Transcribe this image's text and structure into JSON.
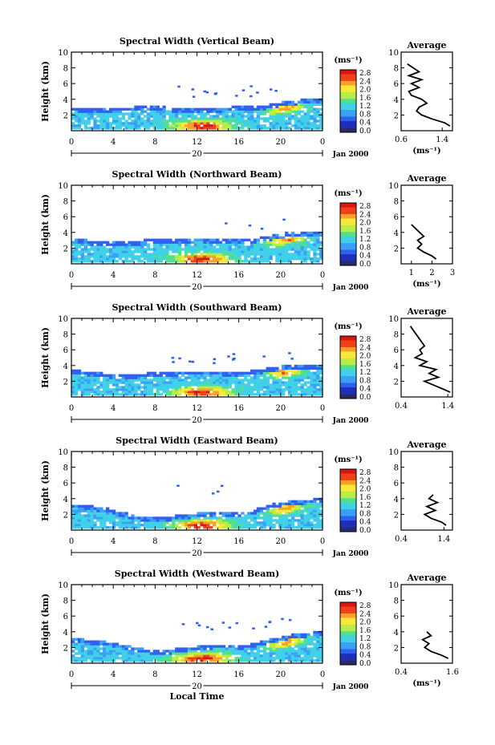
{
  "figure": {
    "xlabel": "Local Time",
    "avg_title": "Average",
    "colorbar_unit": "(ms⁻¹)",
    "date_label": "Jan 2000",
    "colormap": [
      "#2a2a6a",
      "#1e2fb8",
      "#2f60f0",
      "#3aa0f5",
      "#40d0e8",
      "#50e090",
      "#b8ec48",
      "#f8e838",
      "#f8a028",
      "#f04018",
      "#d81810"
    ]
  },
  "chart_data": [
    {
      "type": "heatmap",
      "title": "Spectral Width (Vertical Beam)",
      "xlabel": "",
      "ylabel": "Height (km)",
      "xlim": [
        0,
        24
      ],
      "ylim": [
        0,
        10
      ],
      "xticks": [
        "0",
        "4",
        "8",
        "12",
        "16",
        "20",
        "0"
      ],
      "yticks": [
        "2",
        "4",
        "6",
        "8",
        "10"
      ],
      "day_marker": "20",
      "colorbar": {
        "ticks": [
          "2.8",
          "2.4",
          "2.0",
          "1.6",
          "1.2",
          "0.8",
          "0.4",
          "0.0"
        ],
        "range": [
          0,
          2.8
        ]
      },
      "echo_top_km": [
        3.0,
        2.9,
        2.8,
        2.8,
        2.7,
        2.7,
        3.1,
        3.1,
        3.0,
        3.0,
        2.9,
        2.9,
        2.9,
        2.9,
        2.9,
        3.0,
        3.0,
        3.1,
        3.2,
        3.3,
        3.6,
        3.8,
        3.9,
        4.0,
        4.0
      ],
      "peak_time_h": 12.5,
      "average": {
        "xlim": [
          0.6,
          1.6
        ],
        "xticks": [
          "0.6",
          "1.4"
        ],
        "xlabel": "(ms⁻¹)",
        "height_km": [
          0.6,
          1,
          1.5,
          2,
          2.5,
          3,
          3.5,
          4,
          4.5,
          5,
          5.5,
          6,
          6.5,
          7,
          7.5,
          8.5
        ],
        "width": [
          1.55,
          1.45,
          1.2,
          1.0,
          0.9,
          0.95,
          1.1,
          1.0,
          0.8,
          0.75,
          0.95,
          0.8,
          1.0,
          0.75,
          0.95,
          0.72
        ]
      }
    },
    {
      "type": "heatmap",
      "title": "Spectral Width (Northward Beam)",
      "xlabel": "",
      "ylabel": "Height (km)",
      "xlim": [
        0,
        24
      ],
      "ylim": [
        0,
        10
      ],
      "xticks": [
        "0",
        "4",
        "8",
        "12",
        "16",
        "20",
        "0"
      ],
      "yticks": [
        "2",
        "4",
        "6",
        "8",
        "10"
      ],
      "day_marker": "20",
      "colorbar": {
        "ticks": [
          "2.8",
          "2.4",
          "2.0",
          "1.6",
          "1.2",
          "0.8",
          "0.4",
          "0.0"
        ],
        "range": [
          0,
          2.8
        ]
      },
      "echo_top_km": [
        3.2,
        3.1,
        2.9,
        2.8,
        2.7,
        2.7,
        2.9,
        3.0,
        3.0,
        3.0,
        3.1,
        3.2,
        3.3,
        3.2,
        3.1,
        3.0,
        3.0,
        3.1,
        3.3,
        3.5,
        3.8,
        4.0,
        4.0,
        4.0,
        4.0
      ],
      "peak_time_h": 12.5,
      "average": {
        "xlim": [
          0.5,
          3
        ],
        "xticks": [
          "1",
          "2",
          "3"
        ],
        "xlabel": "(ms⁻¹)",
        "height_km": [
          0.6,
          1,
          1.5,
          2,
          2.5,
          3,
          3.5,
          4,
          4.5,
          5
        ],
        "width": [
          2.2,
          2.0,
          1.6,
          1.3,
          1.5,
          1.3,
          1.6,
          1.4,
          1.2,
          1.0
        ]
      }
    },
    {
      "type": "heatmap",
      "title": "Spectral Width (Southward Beam)",
      "xlabel": "",
      "ylabel": "Height (km)",
      "xlim": [
        0,
        24
      ],
      "ylim": [
        0,
        10
      ],
      "xticks": [
        "0",
        "4",
        "8",
        "12",
        "16",
        "20",
        "0"
      ],
      "yticks": [
        "2",
        "4",
        "6",
        "8",
        "10"
      ],
      "day_marker": "20",
      "colorbar": {
        "ticks": [
          "2.8",
          "2.4",
          "2.0",
          "1.6",
          "1.2",
          "0.8",
          "0.4",
          "0.0"
        ],
        "range": [
          0,
          2.8
        ]
      },
      "echo_top_km": [
        3.4,
        3.3,
        3.2,
        3.0,
        2.9,
        2.8,
        2.9,
        3.0,
        3.0,
        3.1,
        3.2,
        3.3,
        3.3,
        3.3,
        3.3,
        3.2,
        3.2,
        3.3,
        3.5,
        3.7,
        3.9,
        4.0,
        4.1,
        4.1,
        4.1
      ],
      "peak_time_h": 12.5,
      "average": {
        "xlim": [
          0.4,
          1.5
        ],
        "xticks": [
          "0.4",
          "1.4"
        ],
        "xlabel": "",
        "height_km": [
          0.6,
          1,
          1.5,
          2,
          2.5,
          3,
          3.5,
          4,
          4.5,
          5,
          5.5,
          6,
          6.5,
          9
        ],
        "width": [
          1.45,
          1.3,
          1.1,
          0.9,
          1.2,
          1.0,
          1.15,
          0.8,
          0.95,
          0.7,
          0.85,
          0.8,
          0.9,
          0.6
        ]
      }
    },
    {
      "type": "heatmap",
      "title": "Spectral Width (Eastward Beam)",
      "xlabel": "",
      "ylabel": "Height (km)",
      "xlim": [
        0,
        24
      ],
      "ylim": [
        0,
        10
      ],
      "xticks": [
        "0",
        "4",
        "8",
        "12",
        "16",
        "20",
        "0"
      ],
      "yticks": [
        "2",
        "4",
        "6",
        "8",
        "10"
      ],
      "day_marker": "20",
      "colorbar": {
        "ticks": [
          "2.8",
          "2.4",
          "2.0",
          "1.6",
          "1.2",
          "0.8",
          "0.4",
          "0.0"
        ],
        "range": [
          0,
          2.8
        ]
      },
      "echo_top_km": [
        3.3,
        3.2,
        3.0,
        2.9,
        2.6,
        2.2,
        1.8,
        1.7,
        1.7,
        1.7,
        1.8,
        2.0,
        2.1,
        2.2,
        2.3,
        2.3,
        2.3,
        2.4,
        2.8,
        3.2,
        3.5,
        3.7,
        3.8,
        3.9,
        3.9
      ],
      "peak_time_h": 12.5,
      "average": {
        "xlim": [
          0.4,
          1.6
        ],
        "xticks": [
          "0.4",
          "1.4"
        ],
        "xlabel": "",
        "height_km": [
          0.6,
          1,
          1.5,
          2,
          2.5,
          3,
          3.5,
          4,
          4.5
        ],
        "width": [
          1.45,
          1.35,
          1.1,
          0.95,
          1.2,
          1.0,
          1.25,
          1.05,
          1.15
        ]
      }
    },
    {
      "type": "heatmap",
      "title": "Spectral Width (Westward Beam)",
      "xlabel": "",
      "ylabel": "Height (km)",
      "xlim": [
        0,
        24
      ],
      "ylim": [
        0,
        10
      ],
      "xticks": [
        "0",
        "4",
        "8",
        "12",
        "16",
        "20",
        "0"
      ],
      "yticks": [
        "2",
        "4",
        "6",
        "8",
        "10"
      ],
      "day_marker": "20",
      "colorbar": {
        "ticks": [
          "2.8",
          "2.4",
          "2.0",
          "1.6",
          "1.2",
          "0.8",
          "0.4",
          "0.0"
        ],
        "range": [
          0,
          2.8
        ]
      },
      "echo_top_km": [
        3.2,
        3.1,
        2.9,
        2.8,
        2.6,
        2.3,
        2.0,
        1.8,
        1.7,
        1.7,
        1.8,
        2.0,
        2.2,
        2.3,
        2.4,
        2.4,
        2.3,
        2.4,
        2.7,
        3.0,
        3.3,
        3.6,
        3.8,
        3.9,
        3.9
      ],
      "peak_time_h": 12.5,
      "average": {
        "xlim": [
          0.4,
          1.6
        ],
        "xticks": [
          "0.4",
          "1.6"
        ],
        "xlabel": "(ms⁻¹)",
        "height_km": [
          0.6,
          1,
          1.5,
          2,
          2.5,
          3,
          3.5,
          4
        ],
        "width": [
          1.5,
          1.35,
          1.1,
          0.95,
          1.05,
          0.9,
          1.1,
          1.0
        ]
      }
    }
  ]
}
